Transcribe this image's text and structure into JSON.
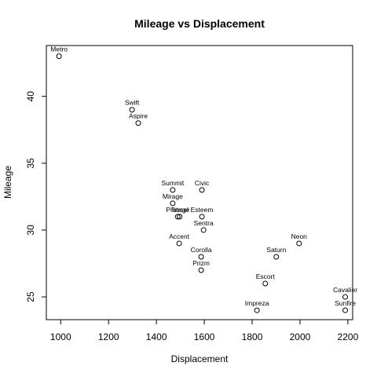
{
  "chart_data": {
    "type": "scatter",
    "title": "Mileage vs Displacement",
    "xlabel": "Displacement",
    "ylabel": "Mileage",
    "xlim": [
      940,
      2220
    ],
    "ylim": [
      23.3,
      43.8
    ],
    "xticks": [
      1000,
      1200,
      1400,
      1600,
      1800,
      2000,
      2200
    ],
    "yticks": [
      25,
      30,
      35,
      40
    ],
    "grid": false,
    "points": [
      {
        "label": "Metro",
        "x": 993,
        "y": 43
      },
      {
        "label": "Swift",
        "x": 1298,
        "y": 39
      },
      {
        "label": "Aspire",
        "x": 1324,
        "y": 38
      },
      {
        "label": "Summit",
        "x": 1468,
        "y": 33
      },
      {
        "label": "Civic",
        "x": 1590,
        "y": 33
      },
      {
        "label": "Mirage",
        "x": 1468,
        "y": 32
      },
      {
        "label": "Protege",
        "x": 1489,
        "y": 31
      },
      {
        "label": "Tercel",
        "x": 1497,
        "y": 31
      },
      {
        "label": "Esteem",
        "x": 1590,
        "y": 31
      },
      {
        "label": "Sentra",
        "x": 1597,
        "y": 30
      },
      {
        "label": "Accent",
        "x": 1495,
        "y": 29
      },
      {
        "label": "Neon",
        "x": 1996,
        "y": 29
      },
      {
        "label": "Corolla",
        "x": 1587,
        "y": 28
      },
      {
        "label": "Saturn",
        "x": 1901,
        "y": 28
      },
      {
        "label": "Prizm",
        "x": 1587,
        "y": 27
      },
      {
        "label": "Escort",
        "x": 1855,
        "y": 26
      },
      {
        "label": "Cavalier",
        "x": 2189,
        "y": 25
      },
      {
        "label": "Impreza",
        "x": 1820,
        "y": 24
      },
      {
        "label": "Sunfire",
        "x": 2189,
        "y": 24
      }
    ]
  }
}
